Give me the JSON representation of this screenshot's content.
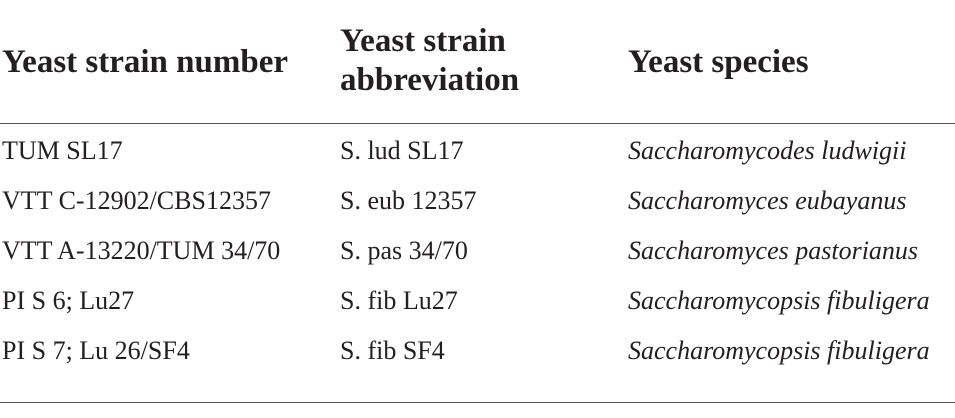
{
  "table": {
    "headers": [
      "Yeast strain number",
      "Yeast strain abbreviation",
      "Yeast species"
    ],
    "rows": [
      [
        "TUM SL17",
        "S. lud SL17",
        "Saccharomycodes ludwigii"
      ],
      [
        "VTT C-12902/CBS12357",
        "S. eub 12357",
        "Saccharomyces eubayanus"
      ],
      [
        "VTT A-13220/TUM 34/70",
        "S. pas 34/70",
        "Saccharomyces pastorianus"
      ],
      [
        "PI S 6; Lu27",
        "S. fib Lu27",
        "Saccharomycopsis fibuligera"
      ],
      [
        "PI S 7; Lu 26/SF4",
        "S. fib SF4",
        "Saccharomycopsis fibuligera"
      ]
    ]
  }
}
